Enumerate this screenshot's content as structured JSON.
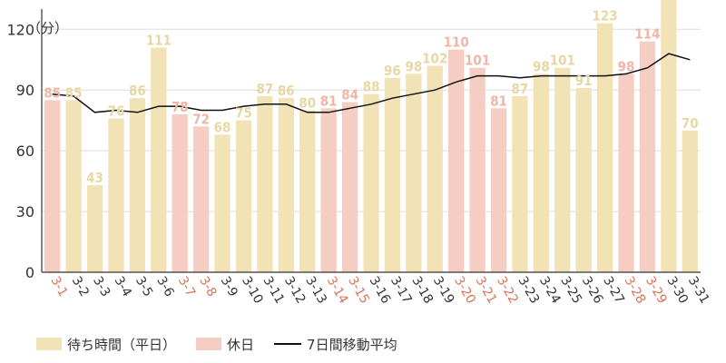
{
  "chart_data": {
    "type": "bar",
    "unit_label": "（分）",
    "categories": [
      "3-1",
      "3-2",
      "3-3",
      "3-4",
      "3-5",
      "3-6",
      "3-7",
      "3-8",
      "3-9",
      "3-10",
      "3-11",
      "3-12",
      "3-13",
      "3-14",
      "3-15",
      "3-16",
      "3-17",
      "3-18",
      "3-19",
      "3-20",
      "3-21",
      "3-22",
      "3-23",
      "3-24",
      "3-25",
      "3-26",
      "3-27",
      "3-28",
      "3-29",
      "3-30",
      "3-31"
    ],
    "values": [
      85,
      85,
      43,
      76,
      86,
      111,
      78,
      72,
      68,
      75,
      87,
      86,
      80,
      81,
      84,
      88,
      96,
      98,
      102,
      110,
      101,
      81,
      87,
      98,
      101,
      91,
      123,
      98,
      114,
      137,
      70
    ],
    "holiday": [
      true,
      false,
      false,
      false,
      false,
      false,
      true,
      true,
      false,
      false,
      false,
      false,
      false,
      true,
      true,
      false,
      false,
      false,
      false,
      true,
      true,
      true,
      false,
      false,
      false,
      false,
      false,
      true,
      true,
      false,
      false
    ],
    "moving_average": [
      88,
      87,
      79,
      80,
      79,
      82,
      82,
      80,
      80,
      82,
      83,
      83,
      79,
      79,
      81,
      83,
      86,
      88,
      90,
      94,
      97,
      97,
      96,
      97,
      97,
      97,
      97,
      98,
      101,
      108,
      105
    ],
    "ylim": [
      0,
      130
    ],
    "yticks": [
      0,
      30,
      60,
      90,
      120
    ],
    "grid": true,
    "legend_position": "bottom-left",
    "legend": [
      {
        "label": "待ち時間（平日）",
        "kind": "weekday"
      },
      {
        "label": "休日",
        "kind": "holiday"
      },
      {
        "label": "7日間移動平均",
        "kind": "line"
      }
    ],
    "colors": {
      "weekday_bar": "#f1e3b6",
      "holiday_bar": "#f5cdc3",
      "weekday_text": "#e8d7a4",
      "holiday_text": "#efb6a8",
      "holiday_axis_text": "#d9745a",
      "weekday_axis_text": "#333333",
      "line": "#111111",
      "grid": "#dddddd"
    }
  }
}
